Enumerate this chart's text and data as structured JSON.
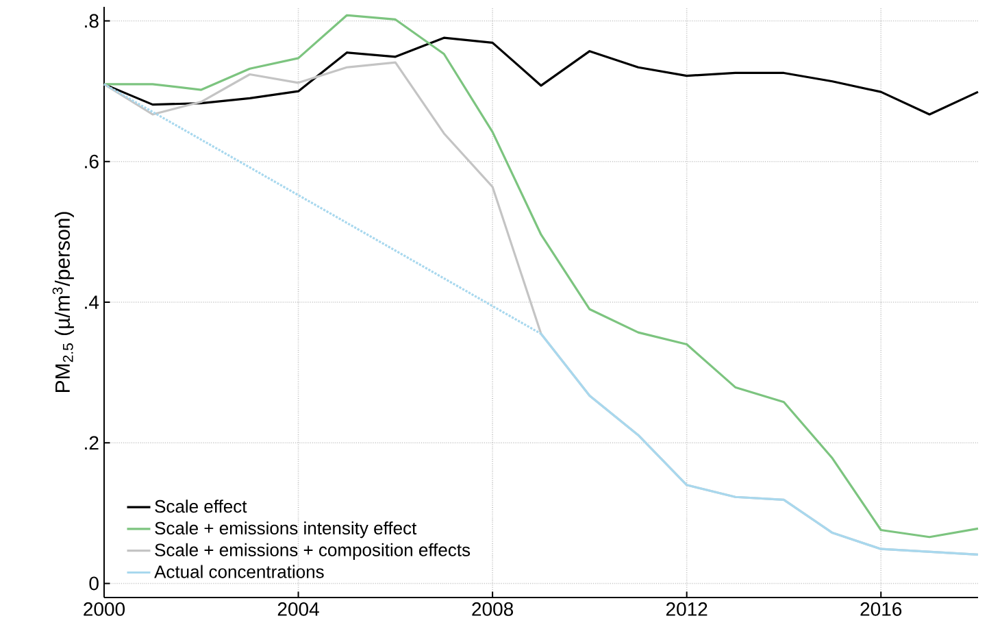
{
  "chart_data": {
    "type": "line",
    "ylabel": "PM$_{2.5}$ (µ/m$^{3}$/person)",
    "x": [
      2000,
      2001,
      2002,
      2003,
      2004,
      2005,
      2006,
      2007,
      2008,
      2009,
      2010,
      2011,
      2012,
      2013,
      2014,
      2015,
      2016,
      2017,
      2018
    ],
    "series": [
      {
        "name": "Scale effect",
        "color": "#000000",
        "values": [
          0.71,
          0.681,
          0.683,
          0.69,
          0.7,
          0.755,
          0.749,
          0.776,
          0.769,
          0.708,
          0.757,
          0.734,
          0.722,
          0.726,
          0.726,
          0.714,
          0.699,
          0.667,
          0.699
        ]
      },
      {
        "name": "Scale + emissions intensity effect",
        "color": "#7cc47f",
        "values": [
          0.71,
          0.71,
          0.702,
          0.732,
          0.747,
          0.808,
          0.802,
          0.753,
          0.642,
          0.496,
          0.39,
          0.357,
          0.34,
          0.279,
          0.258,
          0.178,
          0.076,
          0.066,
          0.078
        ]
      },
      {
        "name": "Scale + emissions + composition effects",
        "color": "#c4c4c4",
        "values": [
          0.71,
          0.667,
          0.685,
          0.724,
          0.712,
          0.734,
          0.741,
          0.64,
          0.564,
          0.355,
          0.267,
          0.211,
          0.14,
          0.123,
          0.119,
          0.072,
          0.049,
          0.045,
          0.041
        ]
      },
      {
        "name": "Actual concentrations",
        "color": "#a8d8ee",
        "values": [
          null,
          null,
          null,
          null,
          null,
          null,
          null,
          null,
          null,
          0.355,
          0.267,
          0.211,
          0.14,
          0.123,
          0.119,
          0.072,
          0.049,
          0.045,
          0.041
        ]
      },
      {
        "color": "#a8d8ee",
        "line_style": "dotted",
        "x": [
          2000,
          2009
        ],
        "values": [
          0.71,
          0.355
        ]
      }
    ],
    "xlim": [
      2000,
      2018
    ],
    "ylim": [
      -0.02,
      0.82
    ],
    "xticks": [
      2000,
      2004,
      2008,
      2012,
      2016
    ],
    "yticks": [
      0,
      {
        "value": 0.2,
        "label": ".2"
      },
      {
        "value": 0.4,
        "label": ".4"
      },
      {
        "value": 0.6,
        "label": ".6"
      },
      {
        "value": 0.8,
        "label": ".8"
      }
    ],
    "grid": true,
    "legend": "bottom left",
    "marker": "none"
  }
}
